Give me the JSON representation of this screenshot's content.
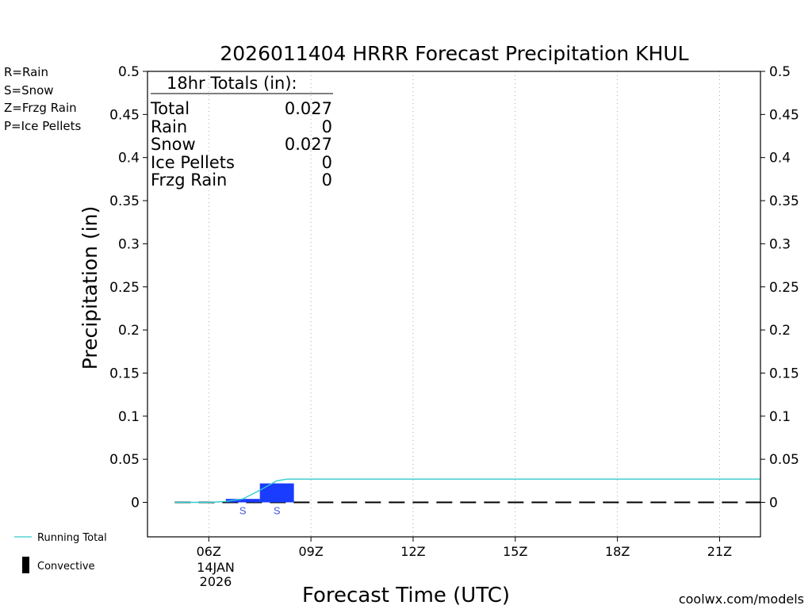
{
  "chart_data": {
    "type": "bar",
    "title": "2026011404 HRRR Forecast Precipitation KHUL",
    "ylabel": "Precipitation (in)",
    "xlabel": "Forecast Time (UTC)",
    "ylim": [
      -0.04,
      0.5
    ],
    "xlim": [
      4.2,
      22.2
    ],
    "y_ticks": [
      0,
      0.05,
      0.1,
      0.15,
      0.2,
      0.25,
      0.3,
      0.35,
      0.4,
      0.45,
      0.5
    ],
    "y_tick_labels": [
      "0",
      "0.05",
      "0.1",
      "0.15",
      "0.2",
      "0.25",
      "0.3",
      "0.35",
      "0.4",
      "0.45",
      "0.5"
    ],
    "x_ticks": [
      6,
      9,
      12,
      15,
      18,
      21
    ],
    "x_tick_labels": [
      "06Z",
      "09Z",
      "12Z",
      "15Z",
      "18Z",
      "21Z"
    ],
    "date_label": [
      "14JAN",
      "2026"
    ],
    "grid": "vertical-dotted",
    "series": [
      {
        "name": "Snow",
        "type": "bar",
        "color": "#1a3cff",
        "bars": [
          {
            "x_start": 6.5,
            "x_end": 7.5,
            "value": 0.004,
            "mark": "S"
          },
          {
            "x_start": 7.5,
            "x_end": 8.5,
            "value": 0.022,
            "mark": "S"
          }
        ]
      },
      {
        "name": "Running Total",
        "type": "line",
        "color": "#33cccc",
        "x": [
          5.0,
          6.0,
          6.5,
          7.0,
          7.5,
          8.0,
          8.3,
          9.0,
          12.0,
          15.0,
          18.0,
          21.0,
          22.2
        ],
        "values": [
          0,
          0,
          0.001,
          0.004,
          0.014,
          0.025,
          0.027,
          0.027,
          0.027,
          0.027,
          0.027,
          0.027,
          0.027
        ]
      },
      {
        "name": "Convective",
        "type": "dashed-line",
        "color": "#000000",
        "x": [
          5.0,
          22.2
        ],
        "values": [
          0,
          0
        ]
      }
    ],
    "totals_box": {
      "heading": "18hr Totals (in):",
      "rows": [
        {
          "label": "Total",
          "value": "0.027"
        },
        {
          "label": "Rain",
          "value": "0"
        },
        {
          "label": "Snow",
          "value": "0.027"
        },
        {
          "label": "Ice Pellets",
          "value": "0"
        },
        {
          "label": "Frzg Rain",
          "value": "0"
        }
      ]
    },
    "type_legend": [
      {
        "text": "R=Rain",
        "color": "#33dd33"
      },
      {
        "text": "S=Snow",
        "color": "#4455ee"
      },
      {
        "text": "Z=Frzg Rain",
        "color": "#ee8833"
      },
      {
        "text": "P=Ice Pellets",
        "color": "#ee2288"
      }
    ],
    "bottom_legend": {
      "running_total": "Running Total",
      "convective": "Convective"
    },
    "credit": {
      "text": "coolwx.com/models",
      "color": "#cc2222"
    }
  }
}
